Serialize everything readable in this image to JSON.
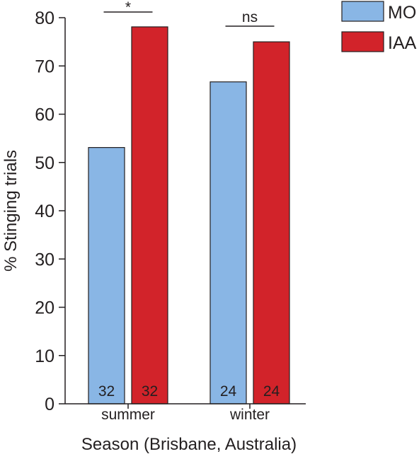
{
  "chart_data": {
    "type": "bar",
    "title": "",
    "xlabel": "Season (Brisbane, Australia)",
    "ylabel": "% Stinging trials",
    "ylim": [
      0,
      80
    ],
    "yticks": [
      0,
      10,
      20,
      30,
      40,
      50,
      60,
      70,
      80
    ],
    "categories": [
      "summer",
      "winter"
    ],
    "series": [
      {
        "name": "MO",
        "color": "#89b6e5",
        "values": [
          53.1,
          66.7
        ],
        "labels": [
          "32",
          "24"
        ]
      },
      {
        "name": "IAA",
        "color": "#d2232a",
        "values": [
          78.1,
          75.0
        ],
        "labels": [
          "32",
          "24"
        ]
      }
    ],
    "significance": [
      "*",
      "ns"
    ],
    "legend_position": "top-right",
    "grid": false
  }
}
